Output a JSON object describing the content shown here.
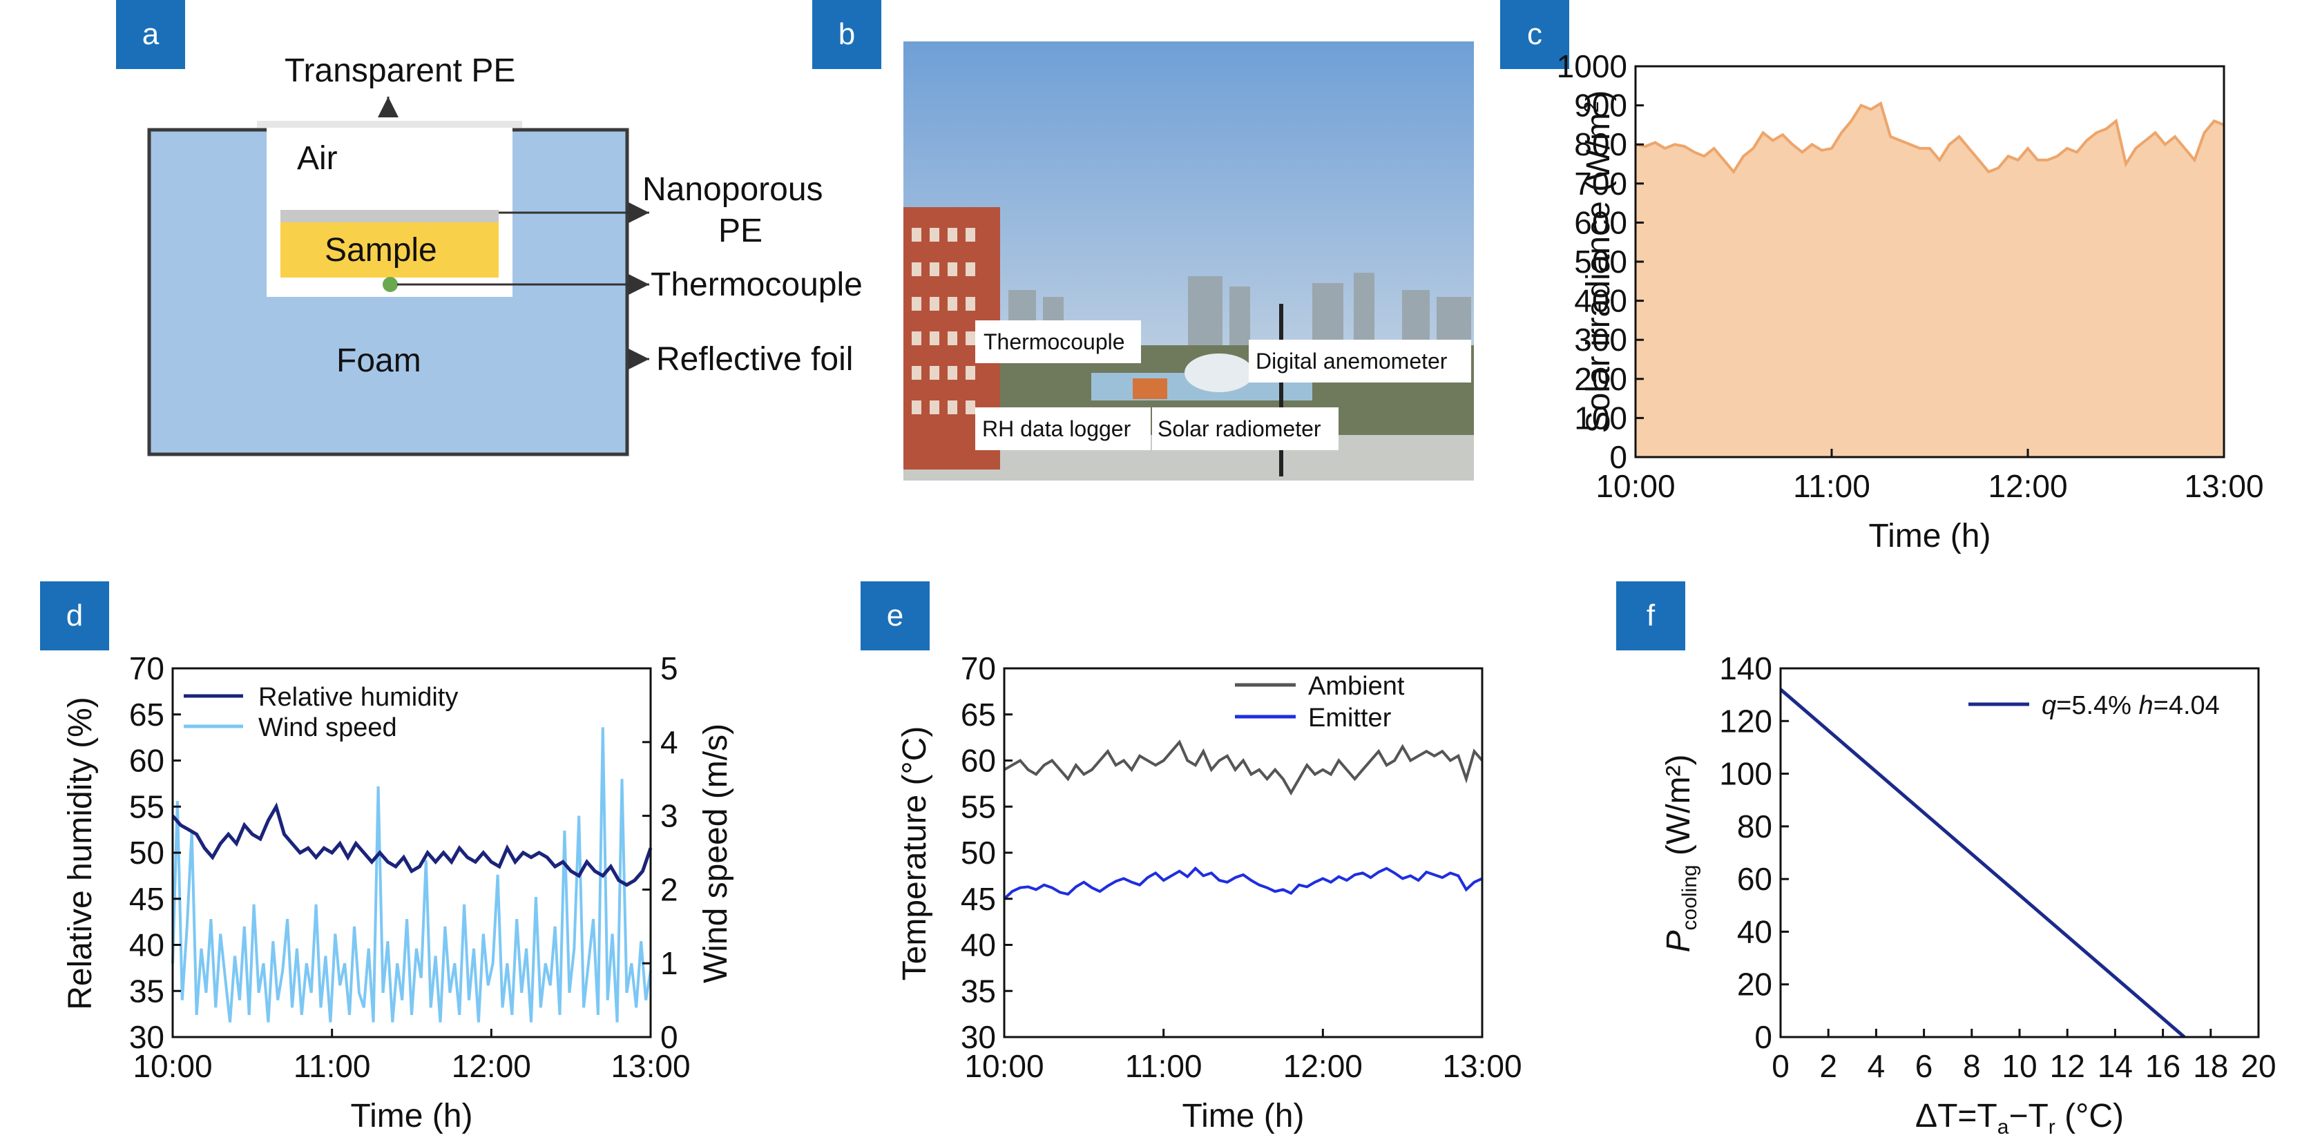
{
  "panels": {
    "a": "a",
    "b": "b",
    "c": "c",
    "d": "d",
    "e": "e",
    "f": "f"
  },
  "schematic": {
    "transparent_pe": "Transparent PE",
    "air": "Air",
    "nanoporous_pe_1": "Nanoporous",
    "nanoporous_pe_2": "PE",
    "sample": "Sample",
    "thermocouple": "Thermocouple",
    "foam": "Foam",
    "reflective_foil": "Reflective foil",
    "colors": {
      "foam": "#a4c5e6",
      "sample": "#f9d04a",
      "dot": "#6aa84f",
      "frame": "#3a3a3a"
    }
  },
  "photo": {
    "labels": {
      "thermocouple": "Thermocouple",
      "digital_anemometer": "Digital anemometer",
      "rh_data_logger": "RH data logger",
      "solar_radiometer": "Solar radiometer"
    },
    "colors": {
      "sky_top": "#6f9fd6",
      "sky_bottom": "#cfdbe6",
      "building": "#b5523b"
    }
  },
  "chart_data": [
    {
      "id": "c",
      "type": "area",
      "xlabel": "Time (h)",
      "ylabel": "Solar irradiance (W/m²)",
      "x_ticks": [
        "10:00",
        "11:00",
        "12:00",
        "13:00"
      ],
      "xlim": [
        10,
        13
      ],
      "ylim": [
        0,
        1000
      ],
      "y_ticks": [
        "0",
        "100",
        "200",
        "300",
        "400",
        "500",
        "600",
        "700",
        "800",
        "900",
        "1000"
      ],
      "color": "#f7cfab",
      "stroke": "#eda56b",
      "x": [
        10.0,
        10.05,
        10.1,
        10.15,
        10.2,
        10.25,
        10.3,
        10.35,
        10.4,
        10.45,
        10.5,
        10.55,
        10.6,
        10.65,
        10.7,
        10.75,
        10.8,
        10.85,
        10.9,
        10.95,
        11.0,
        11.05,
        11.1,
        11.15,
        11.2,
        11.25,
        11.3,
        11.35,
        11.4,
        11.45,
        11.5,
        11.55,
        11.6,
        11.65,
        11.7,
        11.75,
        11.8,
        11.85,
        11.9,
        11.95,
        12.0,
        12.05,
        12.1,
        12.15,
        12.2,
        12.25,
        12.3,
        12.35,
        12.4,
        12.45,
        12.5,
        12.55,
        12.6,
        12.65,
        12.7,
        12.75,
        12.8,
        12.85,
        12.9,
        12.95,
        13.0
      ],
      "y": [
        800,
        795,
        805,
        790,
        800,
        795,
        780,
        770,
        790,
        760,
        730,
        770,
        790,
        830,
        810,
        825,
        800,
        780,
        800,
        785,
        790,
        830,
        860,
        900,
        890,
        905,
        820,
        810,
        800,
        790,
        790,
        760,
        800,
        820,
        790,
        760,
        730,
        740,
        770,
        760,
        790,
        760,
        760,
        770,
        790,
        780,
        810,
        830,
        840,
        860,
        750,
        790,
        810,
        830,
        800,
        820,
        790,
        760,
        830,
        860,
        850
      ]
    },
    {
      "id": "d",
      "type": "line",
      "xlabel": "Time (h)",
      "ylabel": "Relative humidity (%)",
      "y2label": "Wind speed (m/s)",
      "x_ticks": [
        "10:00",
        "11:00",
        "12:00",
        "13:00"
      ],
      "xlim": [
        10,
        13
      ],
      "ylim": [
        30,
        70
      ],
      "y_ticks": [
        "30",
        "35",
        "40",
        "45",
        "50",
        "55",
        "60",
        "65",
        "70"
      ],
      "y2lim": [
        0,
        5
      ],
      "y2_ticks": [
        "0",
        "1",
        "2",
        "3",
        "4",
        "5"
      ],
      "legend_position": "top-left",
      "series": [
        {
          "name": "Relative humidity",
          "axis": "left",
          "color": "#1b237a",
          "x": [
            10.0,
            10.05,
            10.1,
            10.15,
            10.2,
            10.25,
            10.3,
            10.35,
            10.4,
            10.45,
            10.5,
            10.55,
            10.6,
            10.65,
            10.7,
            10.75,
            10.8,
            10.85,
            10.9,
            10.95,
            11.0,
            11.05,
            11.1,
            11.15,
            11.2,
            11.25,
            11.3,
            11.35,
            11.4,
            11.45,
            11.5,
            11.55,
            11.6,
            11.65,
            11.7,
            11.75,
            11.8,
            11.85,
            11.9,
            11.95,
            12.0,
            12.05,
            12.1,
            12.15,
            12.2,
            12.25,
            12.3,
            12.35,
            12.4,
            12.45,
            12.5,
            12.55,
            12.6,
            12.65,
            12.7,
            12.75,
            12.8,
            12.85,
            12.9,
            12.95,
            13.0
          ],
          "y": [
            54,
            53,
            52.5,
            52,
            50.5,
            49.5,
            51,
            52,
            51,
            53,
            52,
            51.5,
            53.5,
            55,
            52,
            51,
            50,
            50.5,
            49.5,
            50.5,
            50,
            51,
            49.5,
            51,
            50,
            49,
            50,
            49,
            48.5,
            49.5,
            48,
            48.5,
            50,
            49,
            50,
            49,
            50.5,
            49.5,
            49,
            50,
            49,
            48.5,
            50.5,
            49,
            50,
            49.5,
            50,
            49.5,
            48.5,
            49,
            48,
            47.5,
            49,
            48,
            47.5,
            48.5,
            47,
            46.5,
            47,
            48,
            50.5
          ]
        },
        {
          "name": "Wind speed",
          "axis": "right",
          "color": "#7cc7f4",
          "x": [
            10.0,
            10.03,
            10.06,
            10.09,
            10.12,
            10.15,
            10.18,
            10.21,
            10.24,
            10.27,
            10.3,
            10.33,
            10.36,
            10.39,
            10.42,
            10.45,
            10.48,
            10.51,
            10.54,
            10.57,
            10.6,
            10.63,
            10.66,
            10.69,
            10.72,
            10.75,
            10.78,
            10.81,
            10.84,
            10.87,
            10.9,
            10.93,
            10.96,
            10.99,
            11.02,
            11.05,
            11.08,
            11.11,
            11.14,
            11.17,
            11.2,
            11.23,
            11.26,
            11.29,
            11.32,
            11.35,
            11.38,
            11.41,
            11.44,
            11.47,
            11.5,
            11.53,
            11.56,
            11.59,
            11.62,
            11.65,
            11.68,
            11.71,
            11.74,
            11.77,
            11.8,
            11.83,
            11.86,
            11.89,
            11.92,
            11.95,
            11.98,
            12.01,
            12.04,
            12.07,
            12.1,
            12.13,
            12.16,
            12.19,
            12.22,
            12.25,
            12.28,
            12.31,
            12.34,
            12.37,
            12.4,
            12.43,
            12.46,
            12.49,
            12.52,
            12.55,
            12.58,
            12.61,
            12.64,
            12.67,
            12.7,
            12.73,
            12.76,
            12.79,
            12.82,
            12.85,
            12.88,
            12.91,
            12.94,
            12.97,
            13.0
          ],
          "y": [
            1.0,
            3.2,
            0.5,
            1.5,
            2.8,
            0.3,
            1.2,
            0.6,
            1.6,
            0.4,
            1.4,
            0.8,
            0.2,
            1.1,
            0.5,
            1.5,
            0.3,
            1.8,
            0.6,
            1.0,
            0.2,
            1.3,
            0.5,
            0.9,
            1.6,
            0.4,
            1.2,
            0.3,
            1.0,
            0.6,
            1.8,
            0.4,
            1.1,
            0.2,
            1.4,
            0.7,
            1.0,
            0.3,
            1.5,
            0.6,
            0.4,
            1.2,
            0.2,
            3.4,
            0.6,
            1.3,
            0.2,
            1.0,
            0.5,
            1.6,
            0.3,
            1.2,
            0.8,
            2.4,
            0.4,
            1.1,
            0.2,
            1.5,
            0.6,
            1.0,
            0.3,
            1.8,
            0.5,
            1.2,
            0.2,
            1.4,
            0.7,
            1.0,
            2.2,
            0.4,
            1.0,
            0.3,
            1.6,
            0.6,
            1.2,
            0.2,
            1.9,
            0.4,
            1.0,
            0.7,
            1.5,
            0.3,
            2.8,
            0.6,
            1.2,
            3.0,
            0.4,
            1.0,
            1.6,
            0.3,
            4.2,
            0.5,
            1.4,
            0.2,
            3.5,
            0.6,
            1.0,
            0.4,
            1.3,
            0.5,
            0.9
          ]
        }
      ]
    },
    {
      "id": "e",
      "type": "line",
      "xlabel": "Time (h)",
      "ylabel": "Temperature (°C)",
      "x_ticks": [
        "10:00",
        "11:00",
        "12:00",
        "13:00"
      ],
      "xlim": [
        10,
        13
      ],
      "ylim": [
        30,
        70
      ],
      "y_ticks": [
        "30",
        "35",
        "40",
        "45",
        "50",
        "55",
        "60",
        "65",
        "70"
      ],
      "legend_position": "top-center",
      "series": [
        {
          "name": "Ambient",
          "color": "#555555",
          "x": [
            10.0,
            10.05,
            10.1,
            10.15,
            10.2,
            10.25,
            10.3,
            10.35,
            10.4,
            10.45,
            10.5,
            10.55,
            10.6,
            10.65,
            10.7,
            10.75,
            10.8,
            10.85,
            10.9,
            10.95,
            11.0,
            11.05,
            11.1,
            11.15,
            11.2,
            11.25,
            11.3,
            11.35,
            11.4,
            11.45,
            11.5,
            11.55,
            11.6,
            11.65,
            11.7,
            11.75,
            11.8,
            11.85,
            11.9,
            11.95,
            12.0,
            12.05,
            12.1,
            12.15,
            12.2,
            12.25,
            12.3,
            12.35,
            12.4,
            12.45,
            12.5,
            12.55,
            12.6,
            12.65,
            12.7,
            12.75,
            12.8,
            12.85,
            12.9,
            12.95,
            13.0
          ],
          "y": [
            59,
            59.5,
            60,
            59,
            58.5,
            59.5,
            60,
            59,
            58,
            59.5,
            58.5,
            59,
            60,
            61,
            59.5,
            60,
            59,
            60.5,
            60,
            59.5,
            60,
            61,
            62,
            60,
            59.5,
            61,
            59,
            60,
            60.5,
            59,
            60,
            58.5,
            59,
            58,
            59,
            58,
            56.5,
            58,
            59.5,
            58.5,
            59,
            58.5,
            60,
            59,
            58,
            59,
            60,
            61,
            59.5,
            60,
            61.5,
            60,
            60.5,
            61,
            60.5,
            61,
            60,
            60.5,
            58,
            61,
            60
          ]
        },
        {
          "name": "Emitter",
          "color": "#1f2ee0",
          "x": [
            10.0,
            10.05,
            10.1,
            10.15,
            10.2,
            10.25,
            10.3,
            10.35,
            10.4,
            10.45,
            10.5,
            10.55,
            10.6,
            10.65,
            10.7,
            10.75,
            10.8,
            10.85,
            10.9,
            10.95,
            11.0,
            11.05,
            11.1,
            11.15,
            11.2,
            11.25,
            11.3,
            11.35,
            11.4,
            11.45,
            11.5,
            11.55,
            11.6,
            11.65,
            11.7,
            11.75,
            11.8,
            11.85,
            11.9,
            11.95,
            12.0,
            12.05,
            12.1,
            12.15,
            12.2,
            12.25,
            12.3,
            12.35,
            12.4,
            12.45,
            12.5,
            12.55,
            12.6,
            12.65,
            12.7,
            12.75,
            12.8,
            12.85,
            12.9,
            12.95,
            13.0
          ],
          "y": [
            45,
            45.8,
            46.2,
            46.3,
            46,
            46.5,
            46.2,
            45.7,
            45.5,
            46.3,
            46.8,
            46.2,
            45.8,
            46.4,
            46.9,
            47.2,
            46.8,
            46.5,
            47.3,
            47.8,
            47,
            47.5,
            48,
            47.4,
            48.3,
            47.5,
            47.8,
            47,
            46.8,
            47.3,
            47.6,
            47,
            46.5,
            46.2,
            45.8,
            46,
            45.6,
            46.5,
            46.3,
            46.8,
            47.2,
            46.8,
            47.4,
            47,
            47.6,
            47.8,
            47.3,
            47.9,
            48.3,
            47.8,
            47.2,
            47.5,
            47,
            47.9,
            47.6,
            47.3,
            47.8,
            47.5,
            46,
            46.8,
            47.2
          ]
        }
      ]
    },
    {
      "id": "f",
      "type": "line",
      "ylabel_main": "P",
      "ylabel_sub": "cooling",
      "ylabel_unit": "(W/m²)",
      "xlabel_prefix": "ΔT=T",
      "xlabel_sub_a": "a",
      "xlabel_mid": "−T",
      "xlabel_sub_r": "r",
      "xlabel_unit": "(°C)",
      "x_ticks": [
        "0",
        "2",
        "4",
        "6",
        "8",
        "10",
        "12",
        "14",
        "16",
        "18",
        "20"
      ],
      "xlim": [
        0,
        20
      ],
      "ylim": [
        0,
        140
      ],
      "y_ticks": [
        "0",
        "20",
        "40",
        "60",
        "80",
        "100",
        "120",
        "140"
      ],
      "legend_position": "top-right",
      "legend_q": "q",
      "legend_q_val": "=5.4% ",
      "legend_h": "h",
      "legend_h_val": "=4.04",
      "series": [
        {
          "name": "q=5.4% h=4.04",
          "color": "#1b2a8a",
          "x": [
            0,
            16.9
          ],
          "y": [
            132,
            0
          ]
        }
      ]
    }
  ]
}
